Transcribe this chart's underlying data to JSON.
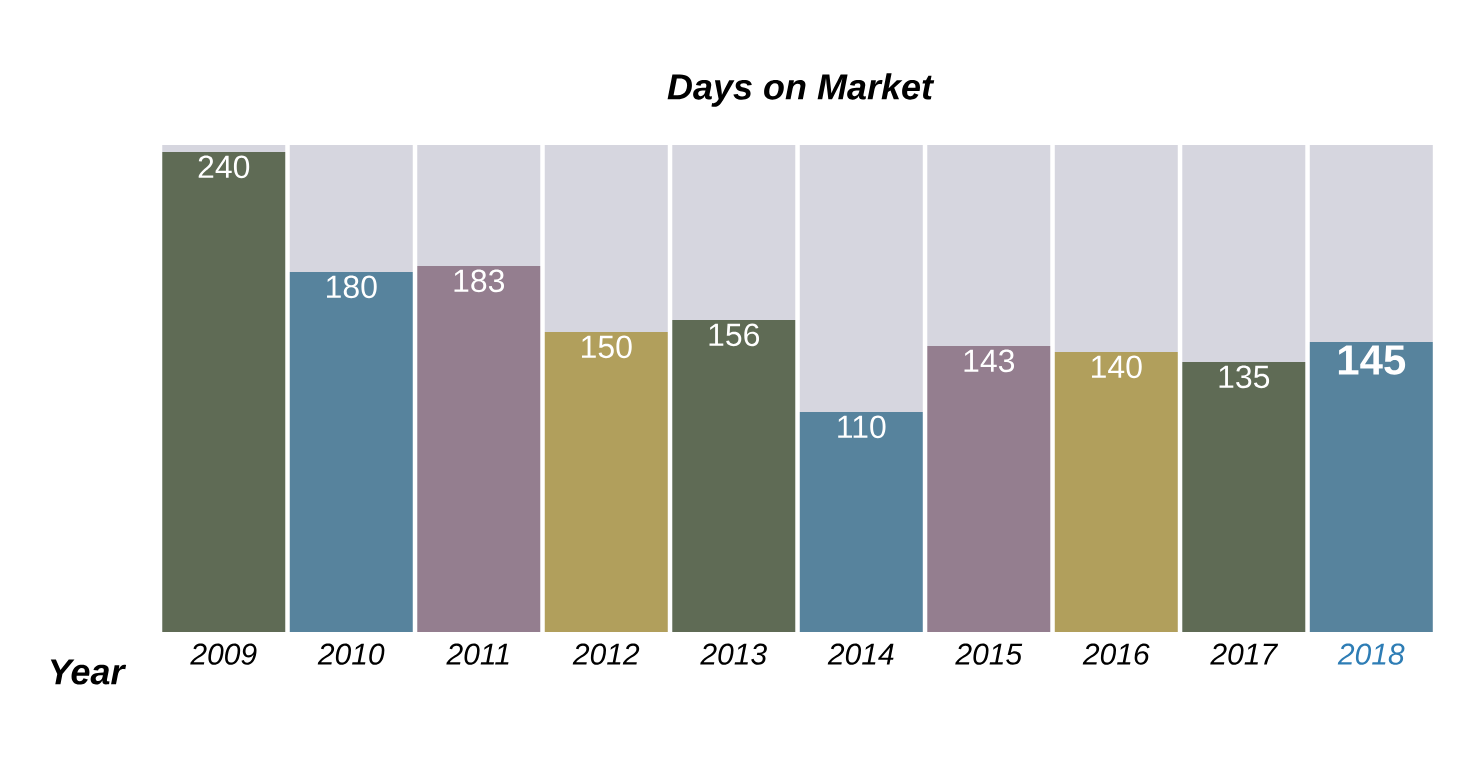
{
  "chart_data": {
    "type": "bar",
    "title": "Days on Market",
    "xlabel": "Year",
    "stacked": true,
    "categories": [
      "2009",
      "2010",
      "2011",
      "2012",
      "2013",
      "2014",
      "2015",
      "2016",
      "2017",
      "2018"
    ],
    "series": [
      {
        "colors": [
          "#5f6b55",
          "#57839d",
          "#947e8f",
          "#b19f5c",
          "#5f6b55",
          "#57839d",
          "#947e8f",
          "#b19f5c",
          "#5f6b55",
          "#57839d"
        ],
        "values": [
          240,
          180,
          183,
          150,
          156,
          110,
          143,
          140,
          135,
          145
        ],
        "value_labels": [
          "240",
          "180",
          "183",
          "150",
          "156",
          "110",
          "143",
          "140",
          "135",
          "145"
        ]
      },
      {
        "color": "#d6d6df",
        "values": [
          3.5,
          63.5,
          60.5,
          93.5,
          87.5,
          133.5,
          100.5,
          103.5,
          108.5,
          98.5
        ]
      }
    ],
    "ylim": [
      0,
      243.5
    ]
  }
}
